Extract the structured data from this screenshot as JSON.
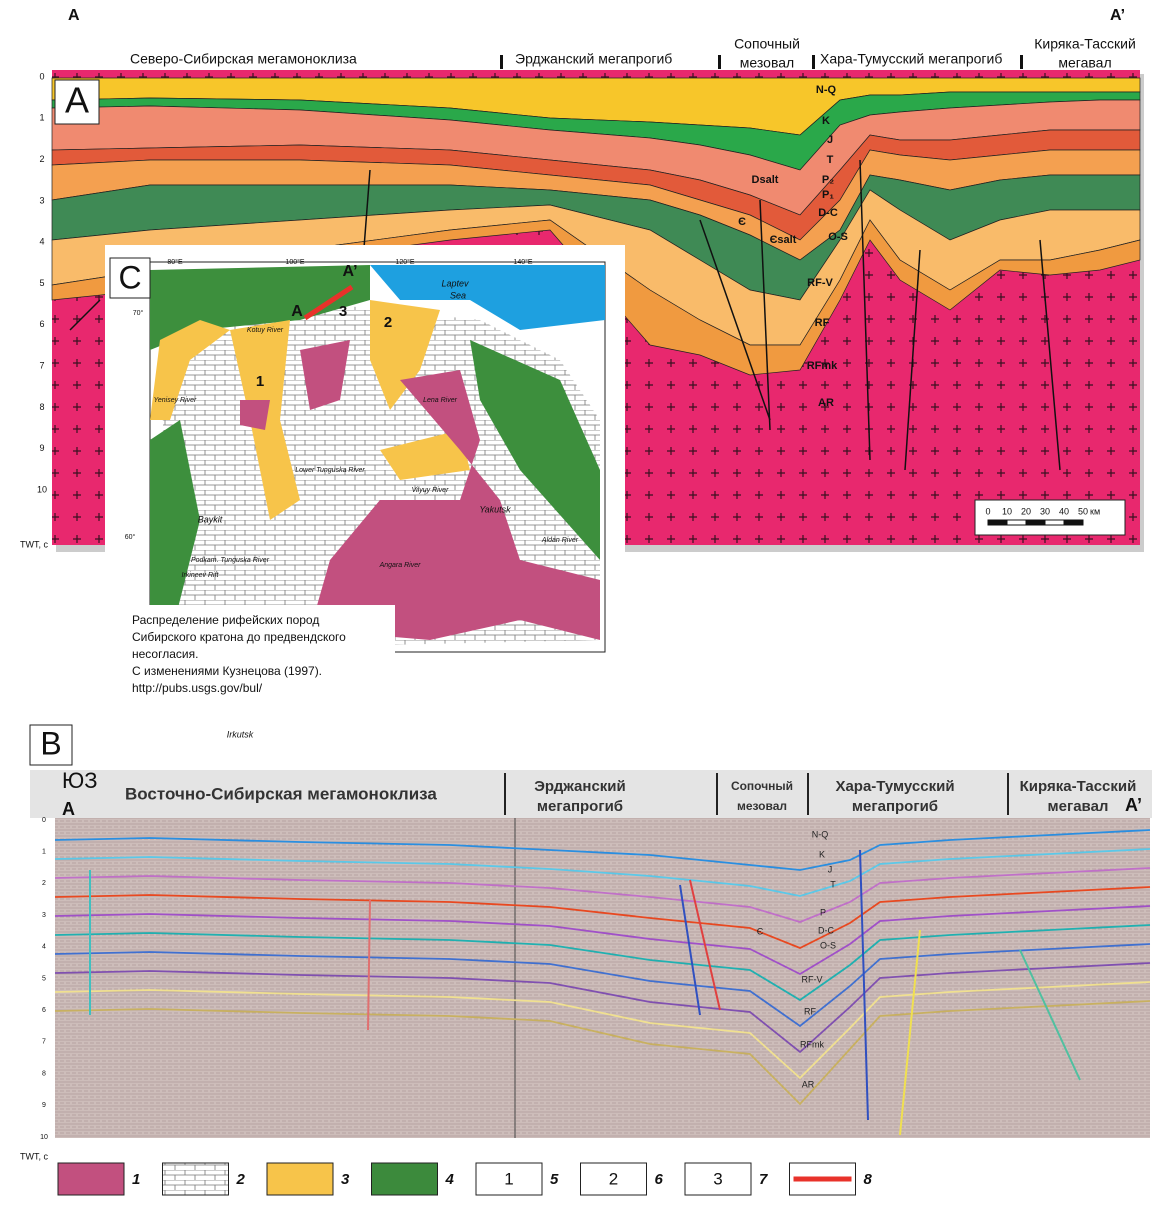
{
  "panel_a": {
    "label": "A",
    "end_left": "A",
    "end_right": "A’",
    "regions": [
      [
        "Северо-Сибирская мегамоноклиза"
      ],
      [
        "Эрджанский мегапрогиб"
      ],
      [
        "Сопочный",
        "мезовал"
      ],
      [
        "Хара-Тумусский мегапрогиб"
      ],
      [
        "Киряка-Тасский",
        "мегавал"
      ]
    ],
    "depth_ticks": [
      0,
      1,
      2,
      3,
      4,
      5,
      6,
      7,
      8,
      9,
      10
    ],
    "axis_label": "TWT, c",
    "layers": [
      "N-Q",
      "K",
      "J",
      "T",
      "P₂",
      "P₁",
      "D-C",
      "O-S",
      "RF-V",
      "RF",
      "RFmk",
      "AR",
      "Dsalt",
      "Єsalt",
      "Є"
    ],
    "scale_ticks": [
      0,
      10,
      20,
      30,
      40,
      50
    ],
    "scale_unit": "км"
  },
  "panel_c": {
    "label": "C",
    "profile_labels": [
      "A",
      "A’"
    ],
    "areas": [
      "1",
      "2",
      "3"
    ],
    "graticule": [
      "80°E",
      "100°E",
      "120°E",
      "140°E",
      "70°",
      "60°"
    ],
    "places": [
      "Laptev",
      "Sea",
      "Baykit",
      "Yakutsk",
      "Irkutsk",
      "Lena River",
      "Vilyuy River",
      "Lower Tunguska River",
      "Podkam. Tunguska River",
      "Irkineev Rift",
      "Yenisey River",
      "Kotuy River",
      "Aldan River",
      "Angara River"
    ],
    "caption": [
      "Распределение рифейских пород",
      "Сибирского кратона до предвендского",
      "несогласия.",
      "С изменениями Кузнецова (1997).",
      "http://pubs.usgs.gov/bul/"
    ]
  },
  "panel_b": {
    "label": "B",
    "direction": "ЮЗ",
    "end_left": "A",
    "end_right": "A’",
    "regions": [
      [
        "Восточно-Сибирская мегамоноклиза"
      ],
      [
        "Эрджанский",
        "мегапрогиб"
      ],
      [
        "Сопочный",
        "мезовал"
      ],
      [
        "Хара-Тумусский",
        "мегапрогиб"
      ],
      [
        "Киряка-Тасский",
        "мегавал"
      ]
    ],
    "depth_ticks": [
      0,
      1,
      2,
      3,
      4,
      5,
      6,
      7,
      8,
      9,
      10
    ],
    "axis_label": "TWT, c",
    "layers": [
      "N-Q",
      "K",
      "J",
      "T",
      "P",
      "D-C",
      "O-S",
      "RF-V",
      "RF",
      "RFmk",
      "AR",
      "Є"
    ]
  },
  "legend": [
    {
      "number": "1"
    },
    {
      "number": "2"
    },
    {
      "number": "3"
    },
    {
      "number": "4"
    },
    {
      "number": "5",
      "box": "1"
    },
    {
      "number": "6",
      "box": "2"
    },
    {
      "number": "7",
      "box": "3"
    },
    {
      "number": "8"
    }
  ]
}
